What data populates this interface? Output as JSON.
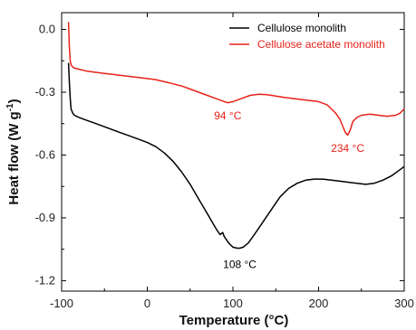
{
  "chart_data": {
    "type": "line",
    "xlabel": "Temperature (°C)",
    "ylabel": {
      "main": "Heat flow (W g",
      "sup": "-1",
      "close": ")"
    },
    "xlim": [
      -100,
      300
    ],
    "ylim": [
      -1.25,
      0.08
    ],
    "xticks": [
      -100,
      0,
      100,
      200,
      300
    ],
    "yticks": [
      0.0,
      -0.3,
      -0.6,
      -0.9,
      -1.2
    ],
    "ytick_labels": [
      "0.0",
      "-0.3",
      "-0.6",
      "-0.9",
      "-1.2"
    ],
    "grid": false,
    "legend_position": "top-right",
    "series": [
      {
        "name": "Cellulose monolith",
        "color": "#000000",
        "x": [
          -92,
          -91,
          -90,
          -89,
          -87,
          -85,
          -80,
          -70,
          -60,
          -50,
          -40,
          -30,
          -20,
          -10,
          0,
          10,
          20,
          30,
          40,
          50,
          60,
          70,
          80,
          85,
          88,
          90,
          95,
          100,
          105,
          108,
          112,
          118,
          125,
          135,
          145,
          155,
          165,
          175,
          185,
          195,
          205,
          215,
          225,
          235,
          245,
          255,
          265,
          275,
          285,
          295,
          300
        ],
        "y": [
          -0.16,
          -0.25,
          -0.33,
          -0.38,
          -0.4,
          -0.41,
          -0.42,
          -0.435,
          -0.45,
          -0.465,
          -0.48,
          -0.495,
          -0.51,
          -0.525,
          -0.54,
          -0.56,
          -0.59,
          -0.63,
          -0.68,
          -0.74,
          -0.81,
          -0.88,
          -0.95,
          -0.98,
          -0.97,
          -0.99,
          -1.02,
          -1.04,
          -1.045,
          -1.045,
          -1.04,
          -1.02,
          -0.98,
          -0.92,
          -0.86,
          -0.8,
          -0.76,
          -0.735,
          -0.72,
          -0.715,
          -0.715,
          -0.72,
          -0.725,
          -0.73,
          -0.735,
          -0.74,
          -0.735,
          -0.72,
          -0.7,
          -0.67,
          -0.655
        ]
      },
      {
        "name": "Cellulose acetate monolith",
        "color": "#e8221a",
        "x": [
          -92,
          -91,
          -90,
          -89,
          -87,
          -85,
          -80,
          -70,
          -60,
          -50,
          -40,
          -30,
          -20,
          -10,
          0,
          10,
          20,
          30,
          40,
          50,
          60,
          70,
          80,
          90,
          94,
          100,
          110,
          120,
          130,
          140,
          150,
          160,
          170,
          180,
          190,
          200,
          210,
          215,
          220,
          225,
          228,
          231,
          234,
          237,
          240,
          245,
          250,
          260,
          270,
          280,
          290,
          295,
          300
        ],
        "y": [
          0.035,
          -0.08,
          -0.15,
          -0.17,
          -0.18,
          -0.185,
          -0.19,
          -0.2,
          -0.205,
          -0.21,
          -0.215,
          -0.22,
          -0.225,
          -0.23,
          -0.235,
          -0.24,
          -0.25,
          -0.26,
          -0.27,
          -0.285,
          -0.3,
          -0.315,
          -0.33,
          -0.345,
          -0.35,
          -0.345,
          -0.33,
          -0.315,
          -0.31,
          -0.312,
          -0.318,
          -0.325,
          -0.33,
          -0.335,
          -0.34,
          -0.345,
          -0.36,
          -0.38,
          -0.4,
          -0.43,
          -0.46,
          -0.49,
          -0.505,
          -0.48,
          -0.44,
          -0.42,
          -0.41,
          -0.405,
          -0.41,
          -0.415,
          -0.41,
          -0.4,
          -0.38
        ]
      }
    ],
    "annotations": [
      {
        "text": "94 °C",
        "x": 94,
        "y": -0.43,
        "color": "#e8221a"
      },
      {
        "text": "234 °C",
        "x": 234,
        "y": -0.585,
        "color": "#e8221a"
      },
      {
        "text": "108 °C",
        "x": 108,
        "y": -1.14,
        "color": "#000000"
      }
    ]
  }
}
